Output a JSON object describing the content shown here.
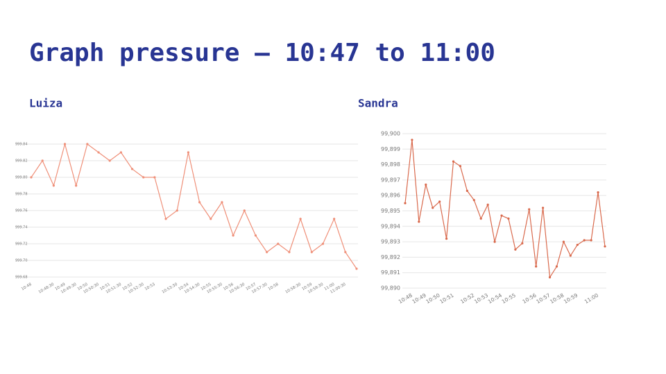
{
  "title": "Graph pressure – 10:47 to 11:00",
  "chart_data": [
    {
      "type": "line",
      "title": "Luiza",
      "color": "#ef8f78",
      "grid": true,
      "categories": [
        "10:48",
        null,
        "10:48:30",
        "10:49",
        "10:49:30",
        "10:50",
        "10:50:30",
        "10:51",
        "10:51:30",
        "10:52",
        "10:52:30",
        "10:53",
        null,
        "10:53:30",
        "10:54",
        "10:54:30",
        "10:55",
        "10:55:30",
        "10:56",
        "10:56:30",
        "10:57",
        "10:57:30",
        "10:58",
        null,
        "10:58:30",
        "10:59",
        "10:59:30",
        "11:00",
        "11:00:30",
        null
      ],
      "values": [
        999.8,
        999.82,
        999.79,
        999.84,
        999.79,
        999.84,
        999.83,
        999.82,
        999.83,
        999.81,
        999.8,
        999.8,
        999.75,
        999.76,
        999.83,
        999.77,
        999.75,
        999.77,
        999.73,
        999.76,
        999.73,
        999.71,
        999.72,
        999.71,
        999.75,
        999.71,
        999.72,
        999.75,
        999.71,
        999.69
      ],
      "ylim": [
        999.68,
        999.84
      ],
      "yticks": [
        999.68,
        {
          "value": 999.7,
          "label": "999.70"
        },
        999.72,
        999.74,
        999.76,
        999.78,
        {
          "value": 999.8,
          "label": "999.80"
        },
        999.82,
        999.84
      ]
    },
    {
      "type": "line",
      "title": "Sandra",
      "color": "#d9694c",
      "grid": true,
      "categories": [
        null,
        "10:48",
        null,
        "10:49",
        null,
        "10:50",
        null,
        "10:51",
        null,
        null,
        "10:52",
        null,
        "10:53",
        null,
        "10:54",
        null,
        "10:55",
        null,
        null,
        "10:56",
        null,
        "10:57",
        null,
        "10:58",
        null,
        "10:59",
        null,
        null,
        "11:00",
        null
      ],
      "values": [
        99.8955,
        99.8996,
        99.8943,
        99.8967,
        99.8952,
        99.8956,
        99.8932,
        99.8982,
        99.8979,
        99.8963,
        99.8957,
        99.8945,
        99.8954,
        99.893,
        99.8947,
        99.8945,
        99.8925,
        99.8929,
        99.8951,
        99.8914,
        99.8952,
        99.8907,
        99.8914,
        99.893,
        99.8921,
        99.8928,
        99.8931,
        99.8931,
        99.8962,
        99.8927
      ],
      "ylim": [
        99.89,
        99.9
      ],
      "yticks": [
        {
          "value": 99.89,
          "label": "99,890"
        },
        {
          "value": 99.891,
          "label": "99,891"
        },
        {
          "value": 99.892,
          "label": "99,892"
        },
        {
          "value": 99.893,
          "label": "99,893"
        },
        {
          "value": 99.894,
          "label": "99,894"
        },
        {
          "value": 99.895,
          "label": "99,895"
        },
        {
          "value": 99.896,
          "label": "99,896"
        },
        {
          "value": 99.897,
          "label": "99,897"
        },
        {
          "value": 99.898,
          "label": "99,898"
        },
        {
          "value": 99.899,
          "label": "99,899"
        },
        {
          "value": 99.9,
          "label": "99,900"
        }
      ]
    }
  ]
}
